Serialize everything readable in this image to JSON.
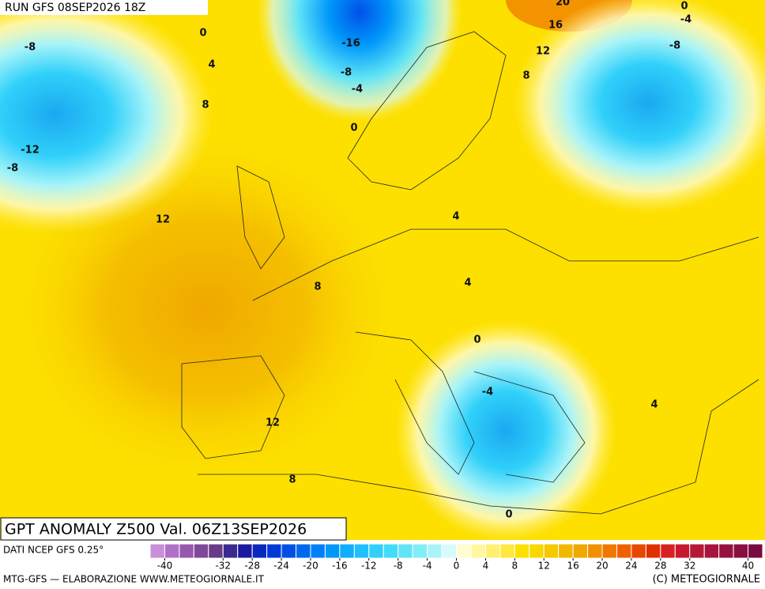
{
  "header": {
    "run": "RUN GFS 08SEP2026 18Z"
  },
  "map": {
    "title": "GPT ANOMALY Z500 Val. 06Z13SEP2026",
    "contour_labels": [
      -8,
      0,
      4,
      -16,
      -8,
      -4,
      20,
      0,
      -4,
      16,
      12,
      -8,
      8,
      8,
      0,
      -12,
      -8,
      12,
      4,
      4,
      8,
      0,
      -4,
      4,
      12,
      8,
      0
    ]
  },
  "colorbar": {
    "source": "DATI NCEP GFS 0.25°",
    "bins": [
      -42,
      -40,
      -38,
      -36,
      -34,
      -32,
      -30,
      -28,
      -26,
      -24,
      -22,
      -20,
      -18,
      -16,
      -14,
      -12,
      -10,
      -8,
      -6,
      -4,
      -2,
      0,
      2,
      4,
      6,
      8,
      10,
      12,
      14,
      16,
      18,
      20,
      22,
      24,
      26,
      28,
      30,
      32,
      34,
      36,
      38,
      40,
      42
    ],
    "colors": [
      "#c98fd8",
      "#b070c8",
      "#9858b0",
      "#804898",
      "#6a3a88",
      "#3a2a90",
      "#1a1aa0",
      "#0a28c0",
      "#0038d8",
      "#0050e8",
      "#0068f0",
      "#0080f8",
      "#0098fa",
      "#10aefc",
      "#20c0fc",
      "#30d0fa",
      "#40dcf8",
      "#60e4f6",
      "#80eef6",
      "#a8f4f8",
      "#d8fafa",
      "#fffcd0",
      "#fff8a0",
      "#fff070",
      "#ffe840",
      "#fde000",
      "#f8d800",
      "#f5c800",
      "#f2b800",
      "#f0a800",
      "#f09000",
      "#f07800",
      "#f06000",
      "#e84800",
      "#e03000",
      "#d82020",
      "#c81830",
      "#b81838",
      "#a81440",
      "#981040",
      "#881040",
      "#780c40"
    ],
    "ticks": [
      -40,
      -32,
      -28,
      -24,
      -20,
      -16,
      -12,
      -8,
      -4,
      0,
      4,
      8,
      12,
      16,
      20,
      24,
      28,
      32,
      40
    ]
  },
  "footer": {
    "left": "MTG-GFS — ELABORAZIONE WWW.METEOGIORNALE.IT",
    "right": "(C) METEOGIORNALE"
  }
}
